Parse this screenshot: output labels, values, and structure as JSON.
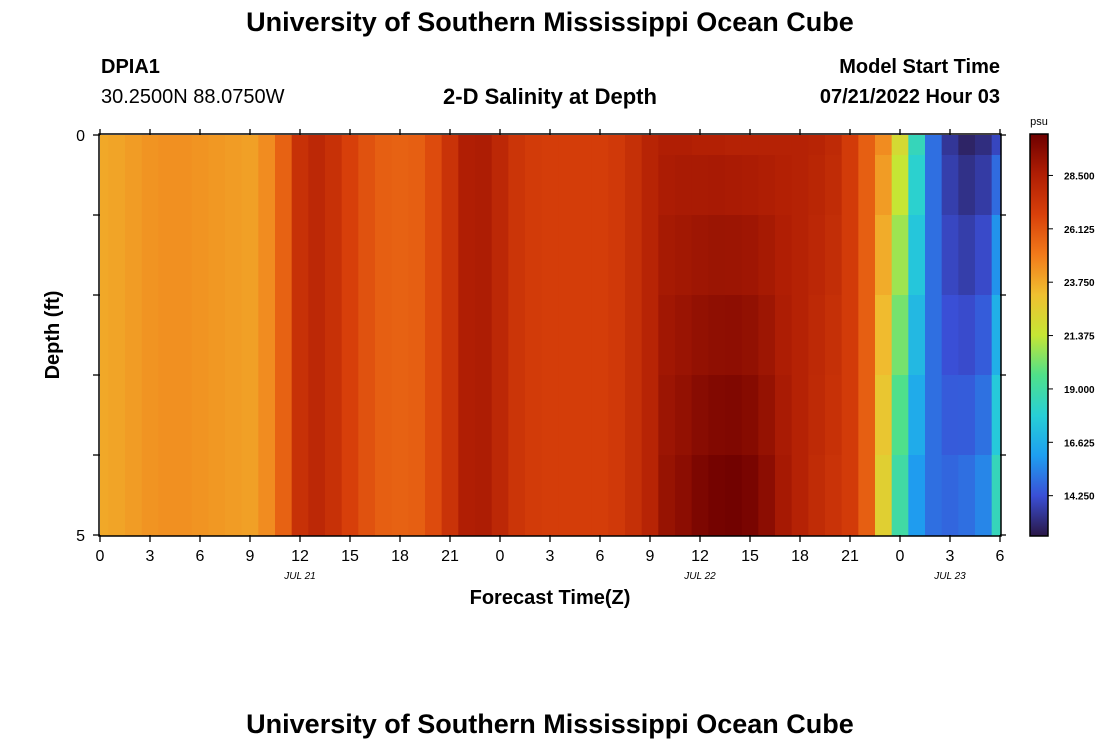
{
  "header": {
    "title": "University of Southern Mississippi Ocean Cube",
    "station_id": "DPIA1",
    "coords": "30.2500N  88.0750W",
    "chart_title": "2-D Salinity at Depth",
    "start_label": "Model Start Time",
    "start_value": "07/21/2022 Hour 03"
  },
  "footer": {
    "title": "University of Southern Mississippi Ocean Cube"
  },
  "chart_data": {
    "type": "heatmap",
    "title": "2-D Salinity at Depth",
    "xlabel": "Forecast Time(Z)",
    "ylabel": "Depth (ft)",
    "x_tick_labels": [
      "0",
      "3",
      "6",
      "9",
      "12",
      "15",
      "18",
      "21",
      "0",
      "3",
      "6",
      "9",
      "12",
      "15",
      "18",
      "21",
      "0",
      "3",
      "6"
    ],
    "date_labels": [
      "JUL 21",
      "JUL 22",
      "JUL 23"
    ],
    "y_tick_labels": [
      "0",
      "5"
    ],
    "ylim": [
      0,
      5
    ],
    "colorbar": {
      "unit": "psu",
      "ticks": [
        "28.500",
        "26.125",
        "23.750",
        "21.375",
        "19.000",
        "16.625",
        "14.250"
      ],
      "min": 12.5,
      "max": 30.3,
      "stops": [
        "#2a1746",
        "#3a4fd6",
        "#1e9ff0",
        "#27cfd6",
        "#4fe08a",
        "#c6e634",
        "#f0c030",
        "#f27a1a",
        "#d8400a",
        "#b01e04",
        "#6e0000"
      ]
    },
    "levels": [
      0.25,
      1.0,
      2.0,
      3.0,
      4.0,
      5.0
    ],
    "times_hours": [
      0,
      1,
      2,
      3,
      4,
      5,
      6,
      7,
      8,
      9,
      10,
      11,
      12,
      13,
      14,
      15,
      16,
      17,
      18,
      19,
      20,
      21,
      22,
      23,
      24,
      25,
      26,
      27,
      28,
      29,
      30,
      31,
      32,
      33,
      34,
      35,
      36,
      37,
      38,
      39,
      40,
      41,
      42,
      43,
      44,
      45,
      46,
      47,
      48,
      49,
      50,
      51,
      52,
      53,
      54
    ],
    "surface_salinity": [
      23.8,
      23.9,
      24.1,
      24.3,
      24.4,
      24.4,
      24.3,
      24.2,
      24.1,
      24.0,
      24.5,
      25.7,
      27.5,
      28.0,
      27.5,
      26.8,
      26.2,
      25.8,
      25.7,
      25.8,
      26.4,
      27.4,
      28.5,
      28.6,
      28.0,
      27.3,
      27.0,
      26.9,
      26.9,
      26.9,
      26.9,
      27.1,
      27.6,
      28.2,
      28.5,
      28.5,
      28.4,
      28.4,
      28.3,
      28.3,
      28.3,
      28.3,
      28.3,
      28.2,
      27.9,
      27.0,
      25.8,
      24.5,
      22.0,
      18.5,
      15.0,
      13.5,
      12.9,
      13.2,
      14.0
    ],
    "bottom_salinity": [
      23.8,
      23.9,
      24.1,
      24.3,
      24.4,
      24.4,
      24.3,
      24.2,
      24.1,
      24.0,
      24.5,
      25.7,
      27.5,
      28.0,
      27.5,
      26.8,
      26.2,
      25.8,
      25.7,
      25.8,
      26.4,
      27.4,
      28.5,
      28.6,
      28.0,
      27.3,
      27.0,
      26.9,
      26.9,
      26.9,
      26.9,
      27.1,
      27.6,
      28.2,
      29.2,
      29.5,
      29.9,
      30.1,
      30.2,
      30.0,
      29.5,
      28.8,
      28.3,
      27.8,
      27.4,
      27.0,
      25.8,
      22.5,
      19.0,
      16.0,
      15.0,
      14.8,
      15.0,
      15.5,
      18.5
    ]
  }
}
